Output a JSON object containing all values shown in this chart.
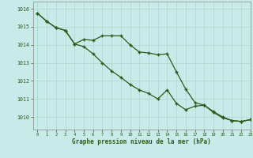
{
  "title": "Graphe pression niveau de la mer (hPa)",
  "background_color": "#c8eae8",
  "grid_color": "#b0d4cc",
  "line_color": "#2d5a1b",
  "xlim": [
    -0.5,
    23
  ],
  "ylim": [
    1009.3,
    1016.4
  ],
  "yticks": [
    1010,
    1011,
    1012,
    1013,
    1014,
    1015,
    1016
  ],
  "xticks": [
    0,
    1,
    2,
    3,
    4,
    5,
    6,
    7,
    8,
    9,
    10,
    11,
    12,
    13,
    14,
    15,
    16,
    17,
    18,
    19,
    20,
    21,
    22,
    23
  ],
  "series1_x": [
    0,
    1,
    2,
    3,
    4,
    5,
    6,
    7,
    8,
    9,
    10,
    11,
    12,
    13,
    14,
    15,
    16,
    17,
    18,
    19,
    20,
    21,
    22,
    23
  ],
  "series1_y": [
    1015.75,
    1015.3,
    1014.95,
    1014.8,
    1014.05,
    1014.3,
    1014.25,
    1014.5,
    1014.5,
    1014.5,
    1014.0,
    1013.6,
    1013.55,
    1013.45,
    1013.5,
    1012.5,
    1011.55,
    1010.8,
    1010.65,
    1010.25,
    1009.95,
    1009.8,
    1009.75,
    1009.85
  ],
  "series2_x": [
    0,
    1,
    2,
    3,
    4,
    5,
    6,
    7,
    8,
    9,
    10,
    11,
    12,
    13,
    14,
    15,
    16,
    17,
    18,
    19,
    20,
    21,
    22,
    23
  ],
  "series2_y": [
    1015.75,
    1015.3,
    1014.95,
    1014.8,
    1014.05,
    1013.9,
    1013.5,
    1013.0,
    1012.55,
    1012.2,
    1011.8,
    1011.5,
    1011.3,
    1011.0,
    1011.5,
    1010.75,
    1010.4,
    1010.6,
    1010.65,
    1010.3,
    1010.0,
    1009.8,
    1009.75,
    1009.85
  ],
  "marker": "+",
  "markersize": 3.5,
  "linewidth": 0.9
}
